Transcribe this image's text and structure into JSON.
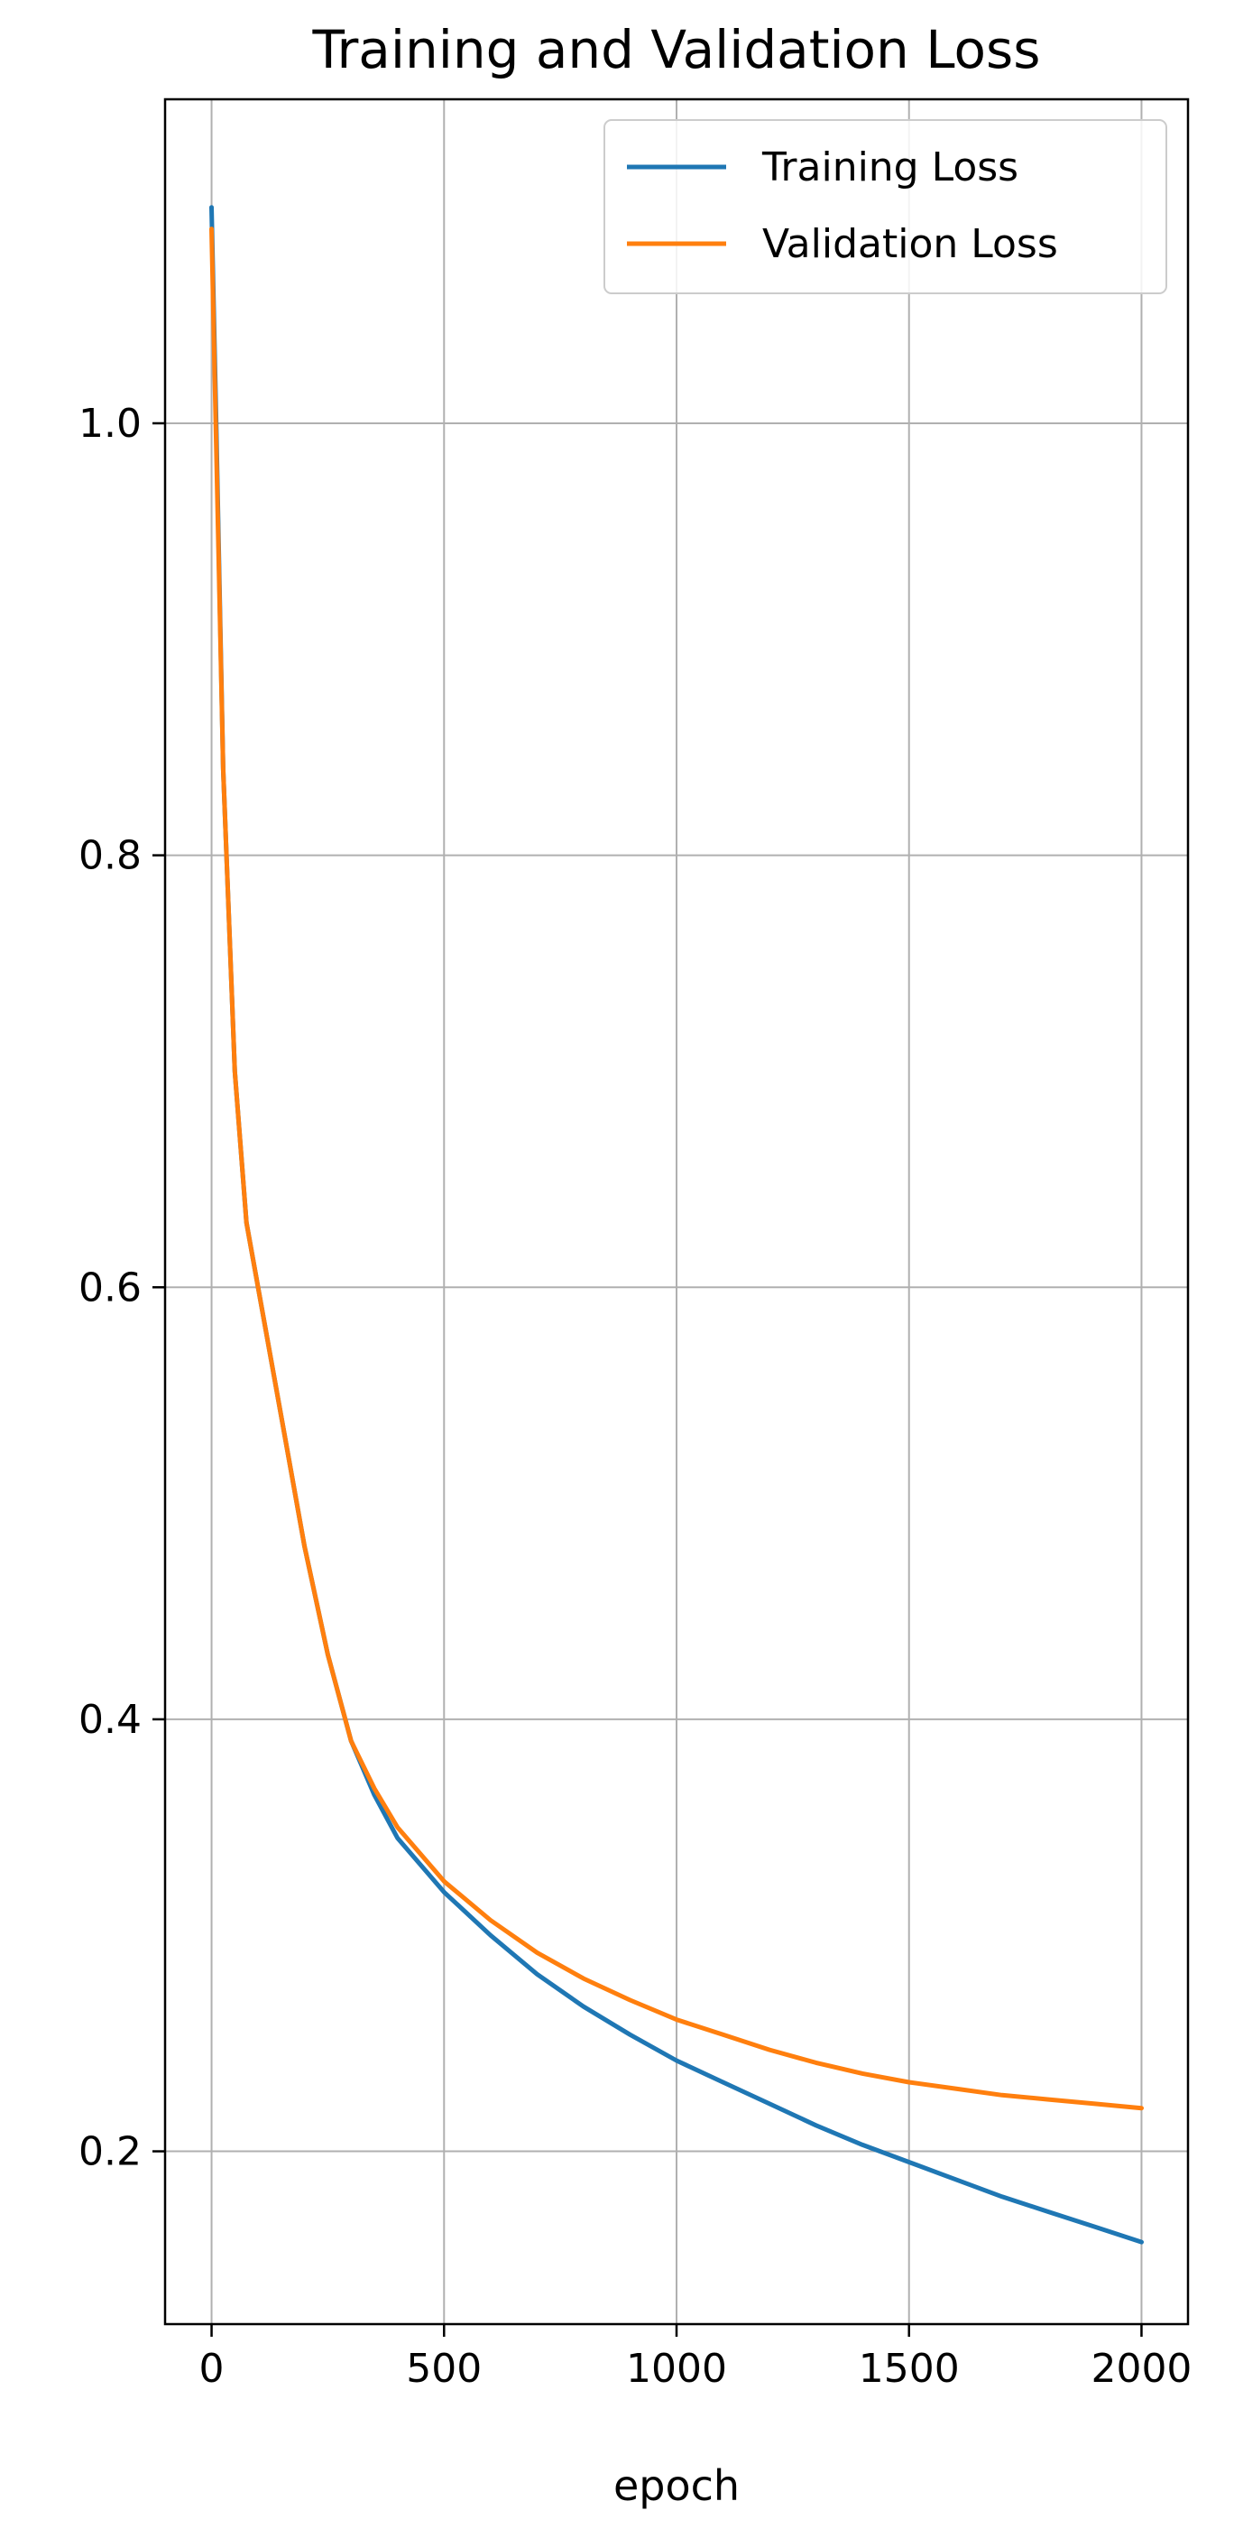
{
  "chart_data": {
    "type": "line",
    "title": "Training and Validation Loss",
    "xlabel": "epoch",
    "ylabel": "",
    "xlim": [
      -100,
      2100
    ],
    "ylim": [
      0.12,
      1.15
    ],
    "xticks": [
      0,
      500,
      1000,
      1500,
      2000
    ],
    "xtick_labels": [
      "0",
      "500",
      "1000",
      "1500",
      "2000"
    ],
    "yticks": [
      0.2,
      0.4,
      0.6,
      0.8,
      1.0
    ],
    "ytick_labels": [
      "0.2",
      "0.4",
      "0.6",
      "0.8",
      "1.0"
    ],
    "grid": true,
    "legend_position": "top-right",
    "series": [
      {
        "name": "Training Loss",
        "color": "#1f77b4",
        "x": [
          0,
          10,
          25,
          50,
          75,
          100,
          150,
          200,
          250,
          300,
          350,
          400,
          500,
          600,
          700,
          800,
          900,
          1000,
          1100,
          1200,
          1300,
          1400,
          1500,
          1600,
          1700,
          1800,
          1900,
          2000
        ],
        "y": [
          1.1,
          1.0,
          0.84,
          0.7,
          0.63,
          0.6,
          0.54,
          0.48,
          0.43,
          0.39,
          0.365,
          0.345,
          0.32,
          0.3,
          0.282,
          0.267,
          0.254,
          0.242,
          0.232,
          0.222,
          0.212,
          0.203,
          0.195,
          0.187,
          0.179,
          0.172,
          0.165,
          0.158
        ]
      },
      {
        "name": "Validation Loss",
        "color": "#ff7f0e",
        "x": [
          0,
          10,
          25,
          50,
          75,
          100,
          150,
          200,
          250,
          300,
          350,
          400,
          500,
          600,
          700,
          800,
          900,
          1000,
          1100,
          1200,
          1300,
          1400,
          1500,
          1600,
          1700,
          1800,
          1900,
          2000
        ],
        "y": [
          1.09,
          0.99,
          0.84,
          0.7,
          0.63,
          0.6,
          0.54,
          0.48,
          0.43,
          0.39,
          0.368,
          0.35,
          0.325,
          0.307,
          0.292,
          0.28,
          0.27,
          0.261,
          0.254,
          0.247,
          0.241,
          0.236,
          0.232,
          0.229,
          0.226,
          0.224,
          0.222,
          0.22
        ]
      }
    ]
  }
}
